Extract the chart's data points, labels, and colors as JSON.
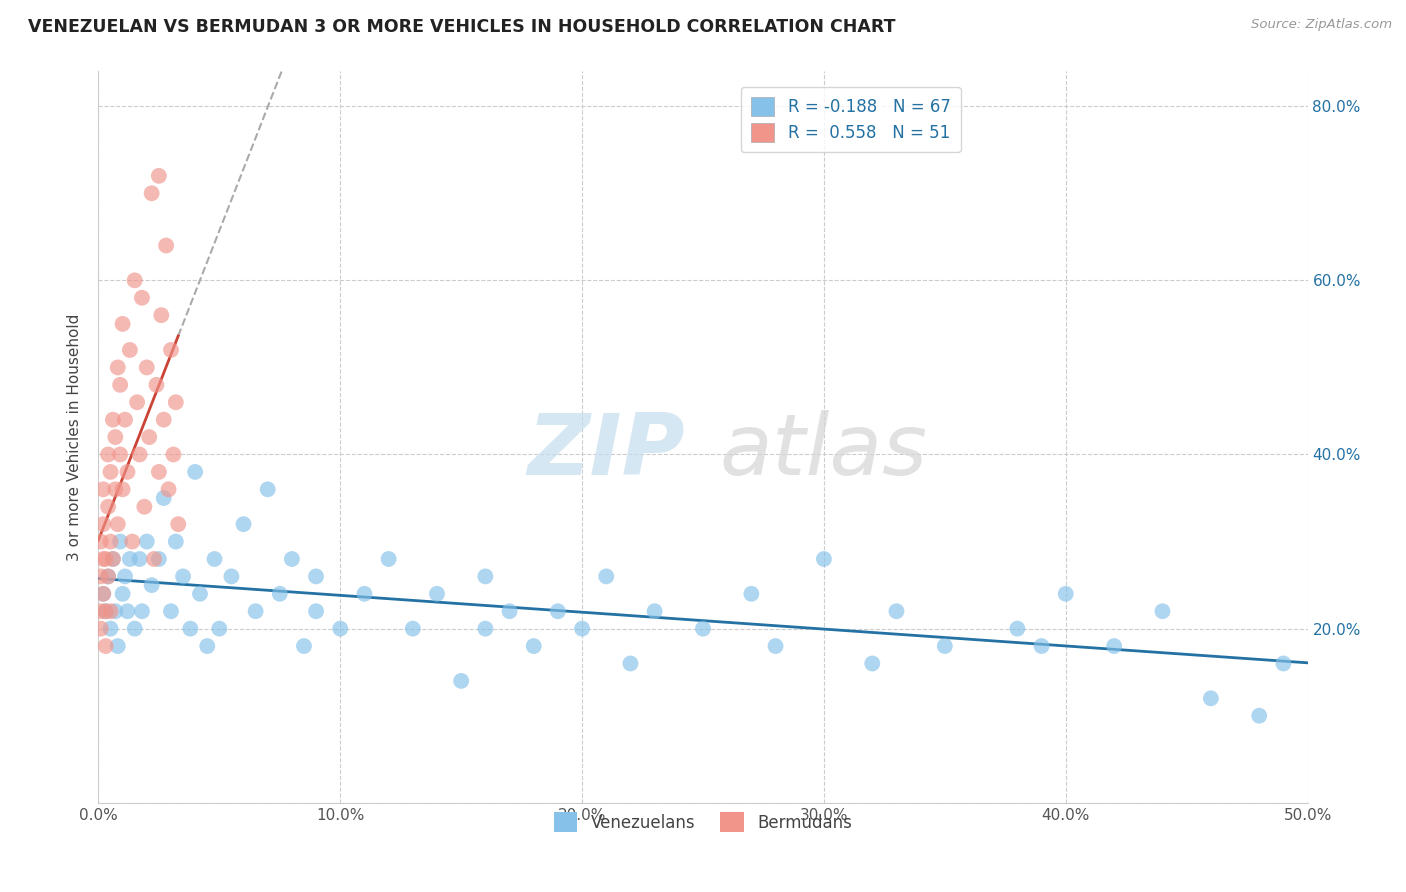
{
  "title": "VENEZUELAN VS BERMUDAN 3 OR MORE VEHICLES IN HOUSEHOLD CORRELATION CHART",
  "source": "Source: ZipAtlas.com",
  "ylabel_label": "3 or more Vehicles in Household",
  "xlim": [
    0.0,
    0.5
  ],
  "ylim": [
    0.0,
    0.84
  ],
  "xtick_vals": [
    0.0,
    0.1,
    0.2,
    0.3,
    0.4,
    0.5
  ],
  "xtick_labels": [
    "0.0%",
    "10.0%",
    "20.0%",
    "30.0%",
    "40.0%",
    "50.0%"
  ],
  "ytick_vals": [
    0.0,
    0.2,
    0.4,
    0.6,
    0.8
  ],
  "ytick_right_labels": [
    "",
    "20.0%",
    "40.0%",
    "60.0%",
    "80.0%"
  ],
  "venezuelan_color": "#85c1e9",
  "bermudan_color": "#f1948a",
  "venezuelan_line_color": "#2471a3",
  "bermudan_line_color": "#cb4335",
  "bermudan_dash_color": "#c0c0c0",
  "R_venezuelan": -0.188,
  "N_venezuelan": 67,
  "R_bermudan": 0.558,
  "N_bermudan": 51,
  "legend_label_venezuelan": "Venezuelans",
  "legend_label_bermudan": "Bermudans",
  "legend_r_color": "#2471a3",
  "venezuelan_x": [
    0.002,
    0.003,
    0.004,
    0.005,
    0.006,
    0.007,
    0.008,
    0.009,
    0.01,
    0.011,
    0.012,
    0.013,
    0.015,
    0.017,
    0.018,
    0.02,
    0.022,
    0.025,
    0.027,
    0.03,
    0.032,
    0.035,
    0.038,
    0.04,
    0.042,
    0.045,
    0.048,
    0.05,
    0.055,
    0.06,
    0.065,
    0.07,
    0.075,
    0.08,
    0.085,
    0.09,
    0.1,
    0.11,
    0.12,
    0.13,
    0.14,
    0.15,
    0.16,
    0.17,
    0.18,
    0.19,
    0.2,
    0.21,
    0.22,
    0.23,
    0.25,
    0.27,
    0.28,
    0.3,
    0.32,
    0.33,
    0.35,
    0.38,
    0.4,
    0.42,
    0.44,
    0.46,
    0.48,
    0.49,
    0.39,
    0.16,
    0.09
  ],
  "venezuelan_y": [
    0.24,
    0.22,
    0.26,
    0.2,
    0.28,
    0.22,
    0.18,
    0.3,
    0.24,
    0.26,
    0.22,
    0.28,
    0.2,
    0.28,
    0.22,
    0.3,
    0.25,
    0.28,
    0.35,
    0.22,
    0.3,
    0.26,
    0.2,
    0.38,
    0.24,
    0.18,
    0.28,
    0.2,
    0.26,
    0.32,
    0.22,
    0.36,
    0.24,
    0.28,
    0.18,
    0.26,
    0.2,
    0.24,
    0.28,
    0.2,
    0.24,
    0.14,
    0.2,
    0.22,
    0.18,
    0.22,
    0.2,
    0.26,
    0.16,
    0.22,
    0.2,
    0.24,
    0.18,
    0.28,
    0.16,
    0.22,
    0.18,
    0.2,
    0.24,
    0.18,
    0.22,
    0.12,
    0.1,
    0.16,
    0.18,
    0.26,
    0.22
  ],
  "bermudan_x": [
    0.001,
    0.001,
    0.001,
    0.001,
    0.002,
    0.002,
    0.002,
    0.002,
    0.003,
    0.003,
    0.003,
    0.004,
    0.004,
    0.004,
    0.005,
    0.005,
    0.005,
    0.006,
    0.006,
    0.007,
    0.007,
    0.008,
    0.008,
    0.009,
    0.009,
    0.01,
    0.01,
    0.011,
    0.012,
    0.013,
    0.014,
    0.015,
    0.016,
    0.017,
    0.018,
    0.019,
    0.02,
    0.021,
    0.022,
    0.023,
    0.024,
    0.025,
    0.026,
    0.027,
    0.028,
    0.029,
    0.03,
    0.031,
    0.032,
    0.033,
    0.025
  ],
  "bermudan_y": [
    0.22,
    0.26,
    0.3,
    0.2,
    0.28,
    0.32,
    0.24,
    0.36,
    0.22,
    0.28,
    0.18,
    0.34,
    0.26,
    0.4,
    0.3,
    0.38,
    0.22,
    0.44,
    0.28,
    0.36,
    0.42,
    0.5,
    0.32,
    0.4,
    0.48,
    0.36,
    0.55,
    0.44,
    0.38,
    0.52,
    0.3,
    0.6,
    0.46,
    0.4,
    0.58,
    0.34,
    0.5,
    0.42,
    0.7,
    0.28,
    0.48,
    0.38,
    0.56,
    0.44,
    0.64,
    0.36,
    0.52,
    0.4,
    0.46,
    0.32,
    0.72
  ]
}
